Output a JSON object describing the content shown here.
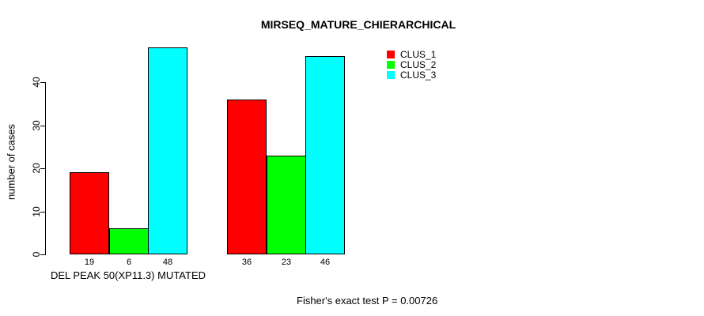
{
  "page": {
    "background": "#FFFFFF",
    "text_color": "#000000"
  },
  "chart_data": {
    "type": "bar",
    "title": "MIRSEQ_MATURE_CHIERARCHICAL",
    "ylabel": "number of cases",
    "xlabel": "",
    "categories": [
      "DEL PEAK 50(XP11.3) MUTATED",
      ""
    ],
    "series": [
      {
        "name": "CLUS_1",
        "color": "#FF0000",
        "values": [
          19,
          36
        ]
      },
      {
        "name": "CLUS_2",
        "color": "#00FF00",
        "values": [
          6,
          23
        ]
      },
      {
        "name": "CLUS_3",
        "color": "#00FFFF",
        "values": [
          48,
          46
        ]
      }
    ],
    "yticks": [
      0,
      10,
      20,
      30,
      40
    ],
    "ylim": [
      0,
      48.4
    ],
    "grid": false,
    "bar_outline_color": "#000000",
    "show_bar_value_labels": true,
    "legend_position": "top-right",
    "annotation": "Fisher's exact test P = 0.00726"
  }
}
